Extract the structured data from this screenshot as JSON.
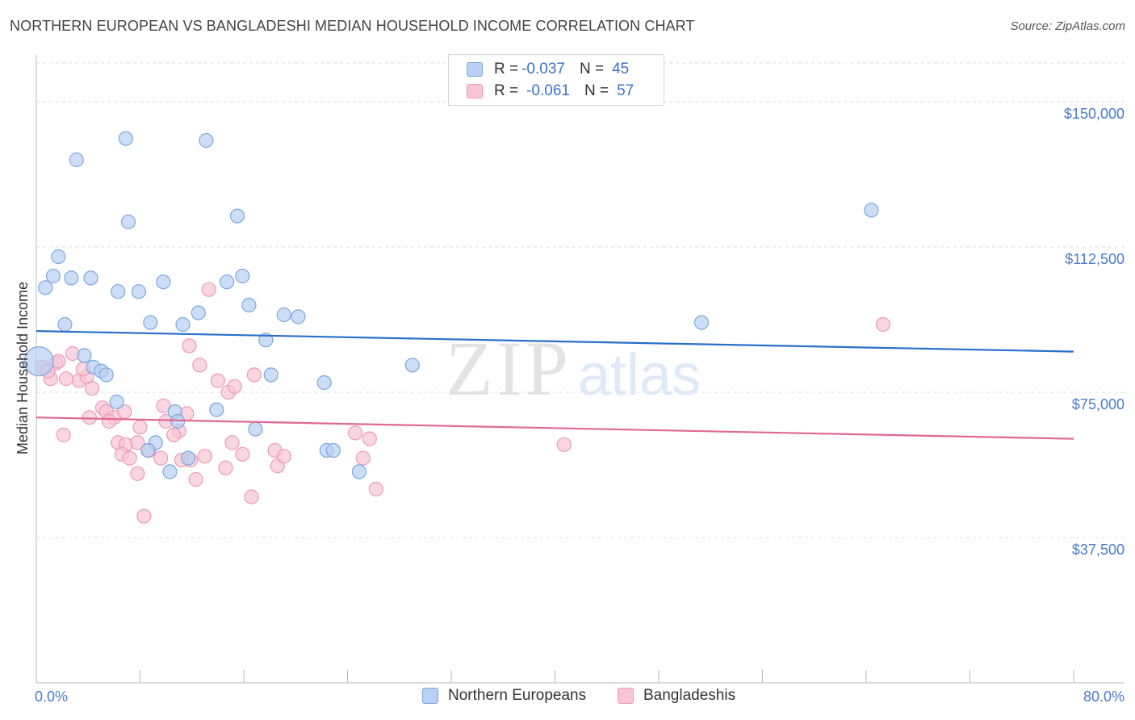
{
  "title": "NORTHERN EUROPEAN VS BANGLADESHI MEDIAN HOUSEHOLD INCOME CORRELATION CHART",
  "source": "Source: ZipAtlas.com",
  "watermark": {
    "zip": "ZIP",
    "atlas": "atlas"
  },
  "legend": {
    "r_label": "R =",
    "n_label": "N =",
    "series": [
      {
        "name": "Northern Europeans",
        "r": "-0.037",
        "n": "45"
      },
      {
        "name": "Bangladeshis",
        "r": "-0.061",
        "n": "57"
      }
    ]
  },
  "colors": {
    "blue_fill": "#b7d0f3",
    "blue_stroke": "#7ea7dd",
    "blue_line": "#2a6fcb",
    "pink_fill": "#f8c5d6",
    "pink_stroke": "#ec9bb6",
    "pink_line": "#e16892",
    "tick_text": "#4a7bd0",
    "grid": "#dcdcdc"
  },
  "chart_data": {
    "type": "scatter",
    "title": "NORTHERN EUROPEAN VS BANGLADESHI MEDIAN HOUSEHOLD INCOME CORRELATION CHART",
    "xlabel": "",
    "ylabel": "Median Household Income",
    "xlim": [
      0,
      80
    ],
    "ylim": [
      0,
      160000
    ],
    "x_tick_labels": [
      "0.0%",
      "80.0%"
    ],
    "y_ticks": [
      37500,
      75000,
      112500,
      150000
    ],
    "y_tick_labels": [
      "$37,500",
      "$75,000",
      "$112,500",
      "$150,000"
    ],
    "series": [
      {
        "name": "Northern Europeans",
        "trend": [
          [
            0,
            90800
          ],
          [
            80,
            85500
          ]
        ],
        "points": [
          [
            3.1,
            135000
          ],
          [
            6.9,
            140500
          ],
          [
            13.1,
            140000
          ],
          [
            7.1,
            119000
          ],
          [
            15.5,
            120500
          ],
          [
            1.7,
            110000
          ],
          [
            1.3,
            105000
          ],
          [
            2.7,
            104500
          ],
          [
            4.2,
            104500
          ],
          [
            9.8,
            103500
          ],
          [
            14.7,
            103500
          ],
          [
            15.9,
            105000
          ],
          [
            0.7,
            102000
          ],
          [
            6.3,
            101000
          ],
          [
            7.9,
            101000
          ],
          [
            16.4,
            97500
          ],
          [
            12.5,
            95500
          ],
          [
            19.1,
            95000
          ],
          [
            20.2,
            94500
          ],
          [
            2.2,
            92500
          ],
          [
            8.8,
            93000
          ],
          [
            11.3,
            92500
          ],
          [
            17.7,
            88500
          ],
          [
            0.2,
            83000
          ],
          [
            3.7,
            84500
          ],
          [
            4.4,
            81500
          ],
          [
            5.0,
            80500
          ],
          [
            5.4,
            79500
          ],
          [
            18.1,
            79500
          ],
          [
            29.0,
            82000
          ],
          [
            22.2,
            77500
          ],
          [
            6.2,
            72500
          ],
          [
            13.9,
            70500
          ],
          [
            10.7,
            70000
          ],
          [
            10.9,
            67500
          ],
          [
            16.9,
            65500
          ],
          [
            9.2,
            62000
          ],
          [
            8.6,
            60000
          ],
          [
            11.7,
            58000
          ],
          [
            22.4,
            60000
          ],
          [
            22.9,
            60000
          ],
          [
            10.3,
            54500
          ],
          [
            24.9,
            54500
          ],
          [
            64.4,
            122000
          ],
          [
            51.3,
            93000
          ]
        ]
      },
      {
        "name": "Bangladeshis",
        "trend": [
          [
            0,
            68500
          ],
          [
            80,
            63000
          ]
        ],
        "points": [
          [
            0.5,
            81500
          ],
          [
            1.1,
            78500
          ],
          [
            1.5,
            82500
          ],
          [
            1.7,
            83000
          ],
          [
            2.3,
            78500
          ],
          [
            3.3,
            78000
          ],
          [
            2.8,
            85000
          ],
          [
            3.9,
            79000
          ],
          [
            3.6,
            81000
          ],
          [
            4.3,
            76000
          ],
          [
            5.1,
            71000
          ],
          [
            5.4,
            70000
          ],
          [
            6.0,
            68500
          ],
          [
            6.8,
            70000
          ],
          [
            5.6,
            67500
          ],
          [
            2.1,
            64000
          ],
          [
            6.3,
            62000
          ],
          [
            6.9,
            61500
          ],
          [
            7.8,
            62000
          ],
          [
            8.0,
            66000
          ],
          [
            8.7,
            60000
          ],
          [
            6.6,
            59000
          ],
          [
            7.2,
            58000
          ],
          [
            7.8,
            54000
          ],
          [
            9.6,
            58000
          ],
          [
            10.0,
            67500
          ],
          [
            11.6,
            69500
          ],
          [
            11.0,
            65000
          ],
          [
            10.6,
            64000
          ],
          [
            11.2,
            57500
          ],
          [
            11.9,
            57500
          ],
          [
            12.3,
            52500
          ],
          [
            13.0,
            58500
          ],
          [
            11.8,
            87000
          ],
          [
            12.6,
            82000
          ],
          [
            13.3,
            101500
          ],
          [
            14.0,
            78000
          ],
          [
            14.8,
            75000
          ],
          [
            15.3,
            76500
          ],
          [
            14.6,
            55500
          ],
          [
            15.1,
            62000
          ],
          [
            15.9,
            59000
          ],
          [
            16.8,
            79500
          ],
          [
            16.6,
            48000
          ],
          [
            18.6,
            56000
          ],
          [
            18.4,
            60000
          ],
          [
            19.1,
            58500
          ],
          [
            24.6,
            64500
          ],
          [
            25.2,
            58000
          ],
          [
            25.7,
            63000
          ],
          [
            26.2,
            50000
          ],
          [
            8.3,
            43000
          ],
          [
            9.8,
            71500
          ],
          [
            4.1,
            68500
          ],
          [
            40.7,
            61500
          ],
          [
            65.3,
            92500
          ],
          [
            0.9,
            80500
          ]
        ]
      }
    ]
  }
}
